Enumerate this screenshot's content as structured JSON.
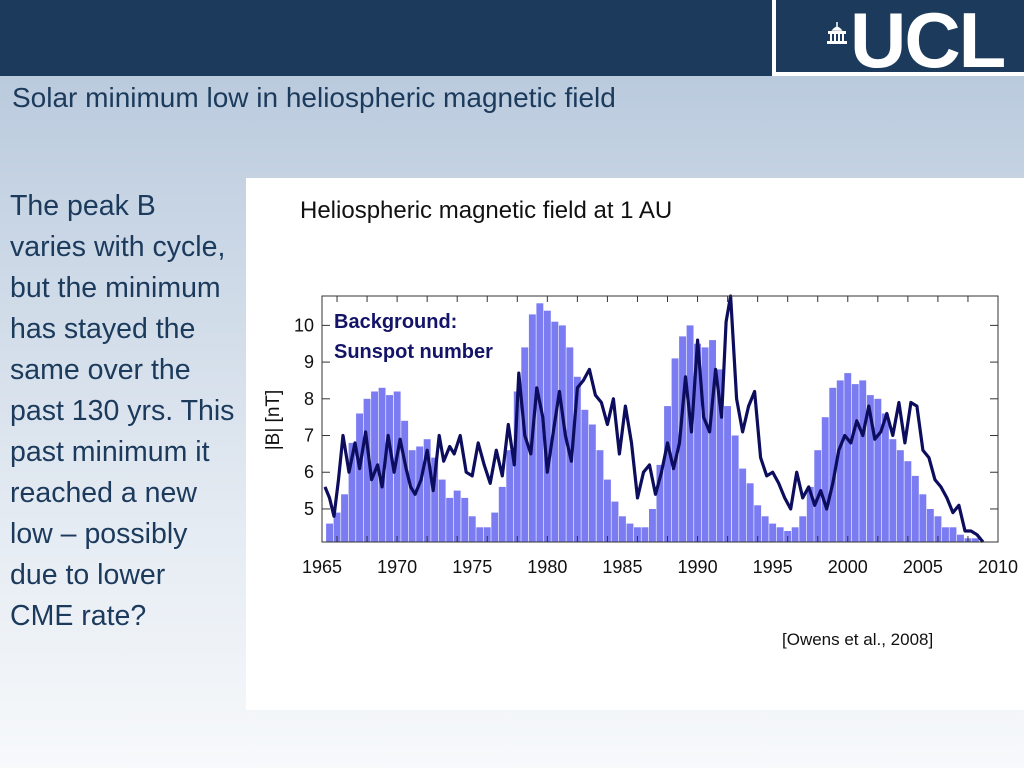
{
  "slide": {
    "title": "Solar minimum low in heliospheric magnetic field",
    "side_text": "The peak B varies with cycle, but the minimum has stayed the same over the past 130 yrs. This past minimum it reached a new low – possibly due to lower CME rate?",
    "logo_text": "UCL",
    "citation": "[Owens et al., 2008]"
  },
  "colors": {
    "header": "#1b3a5c",
    "title_text": "#1b3a5c",
    "bars": "#7b7bf2",
    "line": "#0d0d5e"
  },
  "chart_data": {
    "type": "line",
    "title": "Heliospheric magnetic field at 1 AU",
    "ylabel": "|B| [nT]",
    "xlabel": "",
    "xlim": [
      1965,
      2010
    ],
    "ylim": [
      4.1,
      10.8
    ],
    "xticks": [
      1965,
      1970,
      1975,
      1980,
      1985,
      1990,
      1995,
      2000,
      2005,
      2010
    ],
    "yticks": [
      5,
      6,
      7,
      8,
      9,
      10
    ],
    "annotation": "Background:\nSunspot number",
    "grid": false,
    "background_series": {
      "type": "bar",
      "x": [
        1965.5,
        1966.0,
        1966.5,
        1967.0,
        1967.5,
        1968.0,
        1968.5,
        1969.0,
        1969.5,
        1970.0,
        1970.5,
        1971.0,
        1971.5,
        1972.0,
        1972.5,
        1973.0,
        1973.5,
        1974.0,
        1974.5,
        1975.0,
        1975.5,
        1976.0,
        1976.5,
        1977.0,
        1977.5,
        1978.0,
        1978.5,
        1979.0,
        1979.5,
        1980.0,
        1980.5,
        1981.0,
        1981.5,
        1982.0,
        1982.5,
        1983.0,
        1983.5,
        1984.0,
        1984.5,
        1985.0,
        1985.5,
        1986.0,
        1986.5,
        1987.0,
        1987.5,
        1988.0,
        1988.5,
        1989.0,
        1989.5,
        1990.0,
        1990.5,
        1991.0,
        1991.5,
        1992.0,
        1992.5,
        1993.0,
        1993.5,
        1994.0,
        1994.5,
        1995.0,
        1995.5,
        1996.0,
        1996.5,
        1997.0,
        1997.5,
        1998.0,
        1998.5,
        1999.0,
        1999.5,
        2000.0,
        2000.5,
        2001.0,
        2001.5,
        2002.0,
        2002.5,
        2003.0,
        2003.5,
        2004.0,
        2004.5,
        2005.0,
        2005.5,
        2006.0,
        2006.5,
        2007.0,
        2007.5,
        2008.0,
        2008.5,
        2009.0
      ],
      "values": [
        4.6,
        4.9,
        5.4,
        6.8,
        7.6,
        8.0,
        8.2,
        8.3,
        8.1,
        8.2,
        7.4,
        6.6,
        6.7,
        6.9,
        6.4,
        5.8,
        5.3,
        5.5,
        5.3,
        4.8,
        4.5,
        4.5,
        4.9,
        5.6,
        6.6,
        8.2,
        9.4,
        10.3,
        10.6,
        10.4,
        10.1,
        10.0,
        9.4,
        8.6,
        7.7,
        7.3,
        6.6,
        5.8,
        5.2,
        4.8,
        4.6,
        4.5,
        4.5,
        5.0,
        6.2,
        7.8,
        9.1,
        9.7,
        10.0,
        9.5,
        9.4,
        9.6,
        8.8,
        7.8,
        7.0,
        6.1,
        5.7,
        5.1,
        4.8,
        4.6,
        4.5,
        4.4,
        4.5,
        4.8,
        5.6,
        6.6,
        7.5,
        8.3,
        8.5,
        8.7,
        8.4,
        8.5,
        8.1,
        8.0,
        7.6,
        6.9,
        6.6,
        6.3,
        5.9,
        5.4,
        5.0,
        4.8,
        4.5,
        4.5,
        4.3,
        4.2,
        4.2,
        4.1
      ]
    },
    "series": [
      {
        "x": [
          1965.2,
          1965.5,
          1965.8,
          1966.1,
          1966.4,
          1966.8,
          1967.2,
          1967.5,
          1967.9,
          1968.3,
          1968.7,
          1969.0,
          1969.4,
          1969.8,
          1970.2,
          1970.6,
          1970.9,
          1971.2,
          1971.6,
          1972.0,
          1972.4,
          1972.8,
          1973.1,
          1973.5,
          1973.8,
          1974.2,
          1974.6,
          1975.0,
          1975.4,
          1975.8,
          1976.2,
          1976.6,
          1977.0,
          1977.4,
          1977.8,
          1978.1,
          1978.5,
          1978.9,
          1979.3,
          1979.7,
          1980.0,
          1980.4,
          1980.8,
          1981.2,
          1981.6,
          1982.0,
          1982.4,
          1982.8,
          1983.2,
          1983.6,
          1984.0,
          1984.4,
          1984.8,
          1985.2,
          1985.6,
          1986.0,
          1986.4,
          1986.8,
          1987.2,
          1987.6,
          1988.0,
          1988.4,
          1988.8,
          1989.2,
          1989.6,
          1990.0,
          1990.4,
          1990.8,
          1991.2,
          1991.6,
          1991.9,
          1992.2,
          1992.6,
          1993.0,
          1993.4,
          1993.8,
          1994.2,
          1994.6,
          1995.0,
          1995.4,
          1995.8,
          1996.2,
          1996.6,
          1997.0,
          1997.4,
          1997.8,
          1998.2,
          1998.6,
          1999.0,
          1999.4,
          1999.8,
          2000.2,
          2000.6,
          2001.0,
          2001.4,
          2001.8,
          2002.2,
          2002.6,
          2003.0,
          2003.4,
          2003.8,
          2004.2,
          2004.6,
          2005.0,
          2005.4,
          2005.8,
          2006.2,
          2006.6,
          2007.0,
          2007.4,
          2007.8,
          2008.2,
          2008.6,
          2009.0
        ],
        "values": [
          5.6,
          5.3,
          4.8,
          5.8,
          7.0,
          6.0,
          6.8,
          6.1,
          7.1,
          5.8,
          6.2,
          5.6,
          7.0,
          6.0,
          6.9,
          6.1,
          5.6,
          5.4,
          5.8,
          6.6,
          5.5,
          7.0,
          6.3,
          6.7,
          6.5,
          7.0,
          6.0,
          5.9,
          6.8,
          6.2,
          5.7,
          6.6,
          5.9,
          7.3,
          6.2,
          8.7,
          7.0,
          6.5,
          8.3,
          7.5,
          6.0,
          7.1,
          8.2,
          7.0,
          6.3,
          8.3,
          8.5,
          8.8,
          8.1,
          7.9,
          7.3,
          8.0,
          6.5,
          7.8,
          6.8,
          5.3,
          6.0,
          6.2,
          5.4,
          6.0,
          6.8,
          6.1,
          6.8,
          8.6,
          7.1,
          9.6,
          7.5,
          7.1,
          8.8,
          7.5,
          10.1,
          10.8,
          8.0,
          7.1,
          7.8,
          8.2,
          6.4,
          5.9,
          6.0,
          5.7,
          5.3,
          5.0,
          6.0,
          5.3,
          5.6,
          5.1,
          5.5,
          5.0,
          5.7,
          6.6,
          7.0,
          6.8,
          7.4,
          7.0,
          7.8,
          6.9,
          7.1,
          7.6,
          7.0,
          7.9,
          6.8,
          7.9,
          7.8,
          6.6,
          6.4,
          5.8,
          5.6,
          5.3,
          4.9,
          5.1,
          4.4,
          4.4,
          4.3,
          4.1
        ]
      }
    ]
  }
}
